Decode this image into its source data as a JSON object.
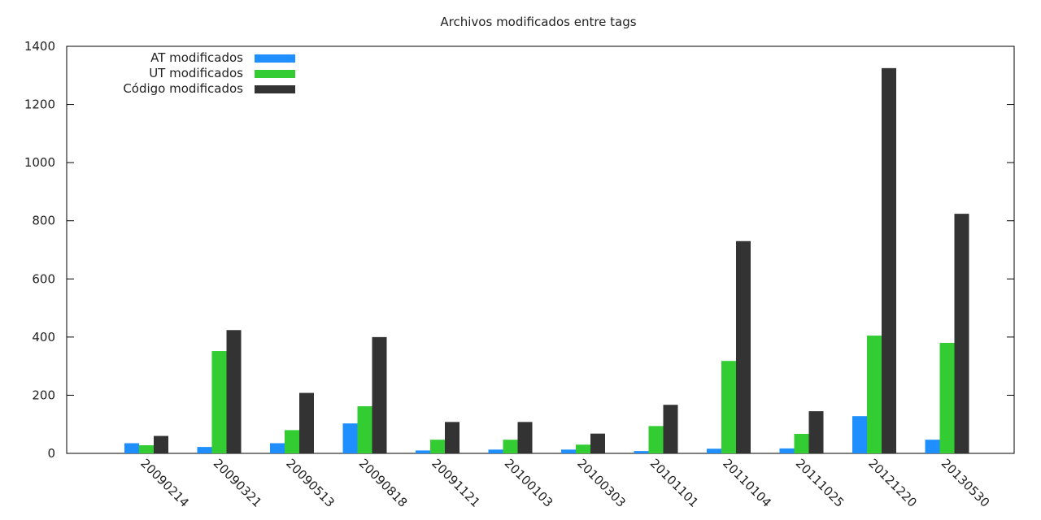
{
  "chart_data": {
    "type": "bar",
    "title": "Archivos modificados entre tags",
    "xlabel": "",
    "ylabel": "",
    "ylim": [
      0,
      1400
    ],
    "yticks": [
      0,
      200,
      400,
      600,
      800,
      1000,
      1200,
      1400
    ],
    "grid": false,
    "legend_position": "top-left",
    "categories": [
      "20090214",
      "20090321",
      "20090513",
      "20090818",
      "20091121",
      "20100103",
      "20100303",
      "20101101",
      "20110104",
      "20111025",
      "20121220",
      "20130530"
    ],
    "series": [
      {
        "name": "AT modificados",
        "color": "#1f8fff",
        "values": [
          35,
          22,
          35,
          103,
          10,
          13,
          13,
          8,
          16,
          17,
          128,
          47
        ]
      },
      {
        "name": "UT modificados",
        "color": "#33cc33",
        "values": [
          28,
          352,
          80,
          162,
          47,
          47,
          30,
          94,
          318,
          67,
          405,
          380
        ]
      },
      {
        "name": "Código modificados",
        "color": "#333333",
        "values": [
          60,
          424,
          208,
          400,
          108,
          108,
          68,
          167,
          730,
          145,
          1325,
          824
        ]
      }
    ]
  }
}
